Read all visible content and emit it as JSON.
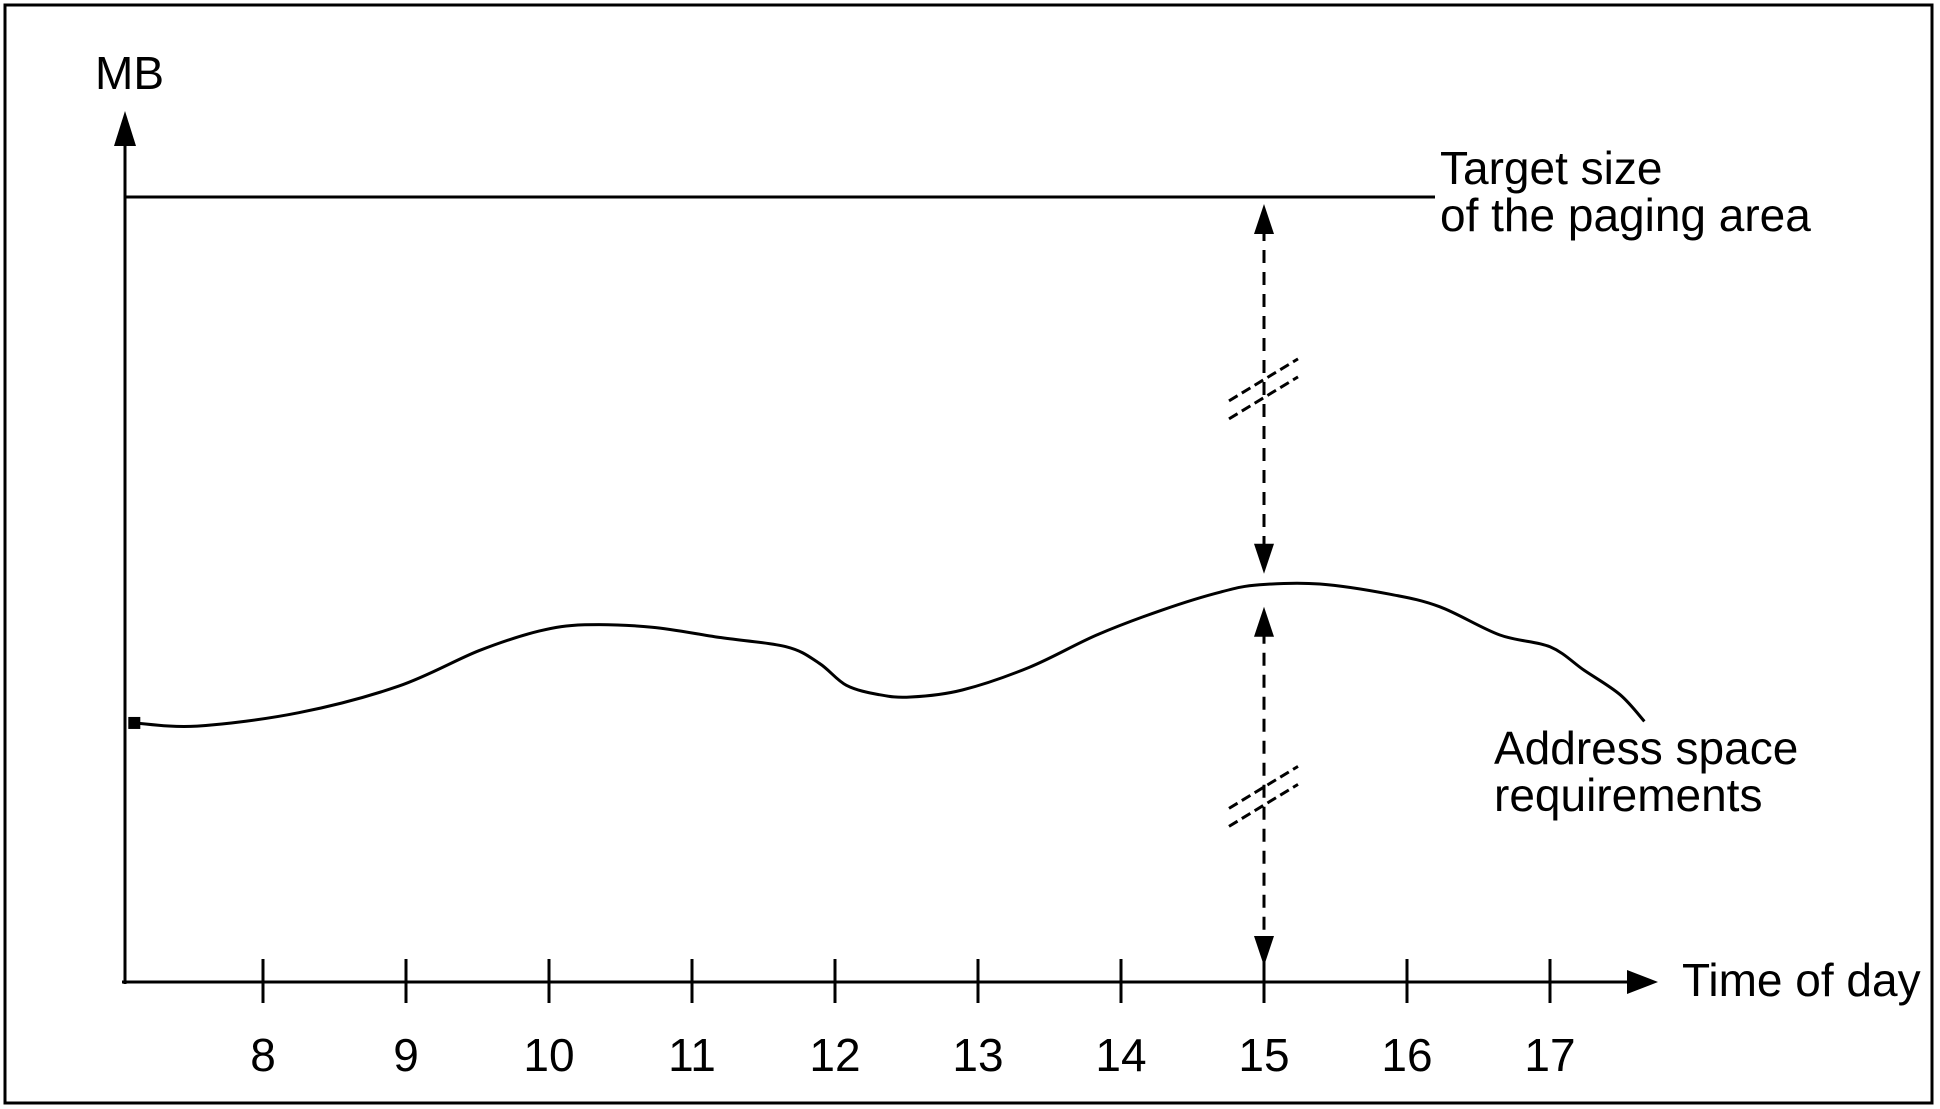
{
  "colors": {
    "ink": "#000000",
    "background": "#ffffff"
  },
  "chart_data": {
    "type": "line",
    "title": "",
    "xlabel": "Time of day",
    "ylabel": "MB",
    "x_ticks": [
      8,
      9,
      10,
      11,
      12,
      13,
      14,
      15,
      16,
      17
    ],
    "xlim": [
      7.1,
      17.7
    ],
    "grid": false,
    "y_scale_note": "y axis has no numeric ticks; values are relative units where the target paging area size = 100",
    "target_line": {
      "label_lines": [
        "Target size",
        "of the paging area"
      ],
      "level": 100
    },
    "series": [
      {
        "name": "Address space requirements",
        "label_lines": [
          "Address space",
          "requirements"
        ],
        "points": [
          [
            7.1,
            33.0
          ],
          [
            7.54,
            32.6
          ],
          [
            8.25,
            34.3
          ],
          [
            8.95,
            37.7
          ],
          [
            9.51,
            42.2
          ],
          [
            9.93,
            44.7
          ],
          [
            10.25,
            45.5
          ],
          [
            10.72,
            45.2
          ],
          [
            11.19,
            43.9
          ],
          [
            11.66,
            42.7
          ],
          [
            11.89,
            40.6
          ],
          [
            12.08,
            37.8
          ],
          [
            12.31,
            36.6
          ],
          [
            12.53,
            36.3
          ],
          [
            12.89,
            37.2
          ],
          [
            13.36,
            40.1
          ],
          [
            13.83,
            44.2
          ],
          [
            14.29,
            47.4
          ],
          [
            14.7,
            49.7
          ],
          [
            14.97,
            50.6
          ],
          [
            15.39,
            50.7
          ],
          [
            15.88,
            49.4
          ],
          [
            16.23,
            47.8
          ],
          [
            16.65,
            44.2
          ],
          [
            17.0,
            42.7
          ],
          [
            17.24,
            39.7
          ],
          [
            17.49,
            36.6
          ],
          [
            17.66,
            33.2
          ]
        ]
      }
    ],
    "annotations": {
      "arrows": [
        {
          "at_hour": 15,
          "from": "target_line",
          "to": "curve",
          "style": "dashed double-headed arrow with break marks"
        },
        {
          "at_hour": 15,
          "from": "curve",
          "to": "x_axis",
          "style": "dashed double-headed arrow with break marks"
        }
      ]
    }
  }
}
